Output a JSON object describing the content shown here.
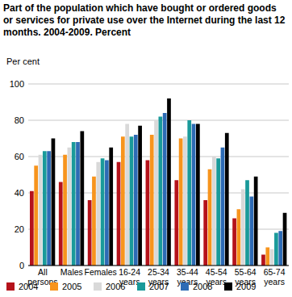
{
  "chart_data": {
    "type": "bar",
    "title": "Part of the population which have bought or ordered goods or services for private use over the Internet during the last 12 months. 2004-2009. Percent",
    "y_label": "Per cent",
    "categories": [
      "All persons",
      "Males",
      "Females",
      "16-24 years",
      "25-34 years",
      "35-44 years",
      "45-54 years",
      "55-64 years",
      "65-74 years"
    ],
    "series": [
      {
        "name": "2004",
        "color": "#b5121b",
        "values": [
          41,
          46,
          36,
          57,
          58,
          47,
          36,
          26,
          6
        ]
      },
      {
        "name": "2005",
        "color": "#f7941d",
        "values": [
          55,
          61,
          49,
          71,
          72,
          70,
          53,
          31,
          10
        ]
      },
      {
        "name": "2006",
        "color": "#d9d9d9",
        "values": [
          61,
          65,
          57,
          78,
          80,
          71,
          60,
          42,
          9
        ]
      },
      {
        "name": "2007",
        "color": "#1a9a9a",
        "values": [
          63,
          68,
          59,
          71,
          82,
          80,
          59,
          47,
          18
        ]
      },
      {
        "name": "2008",
        "color": "#2d6bb5",
        "values": [
          63,
          68,
          58,
          72,
          84,
          78,
          65,
          38,
          19
        ]
      },
      {
        "name": "2009",
        "color": "#000000",
        "values": [
          70,
          74,
          65,
          77,
          92,
          78,
          73,
          49,
          29
        ]
      }
    ],
    "ylim": [
      0,
      100
    ],
    "yticks": [
      0,
      20,
      40,
      60,
      80,
      100
    ],
    "grid": true,
    "legend": "bottom"
  }
}
